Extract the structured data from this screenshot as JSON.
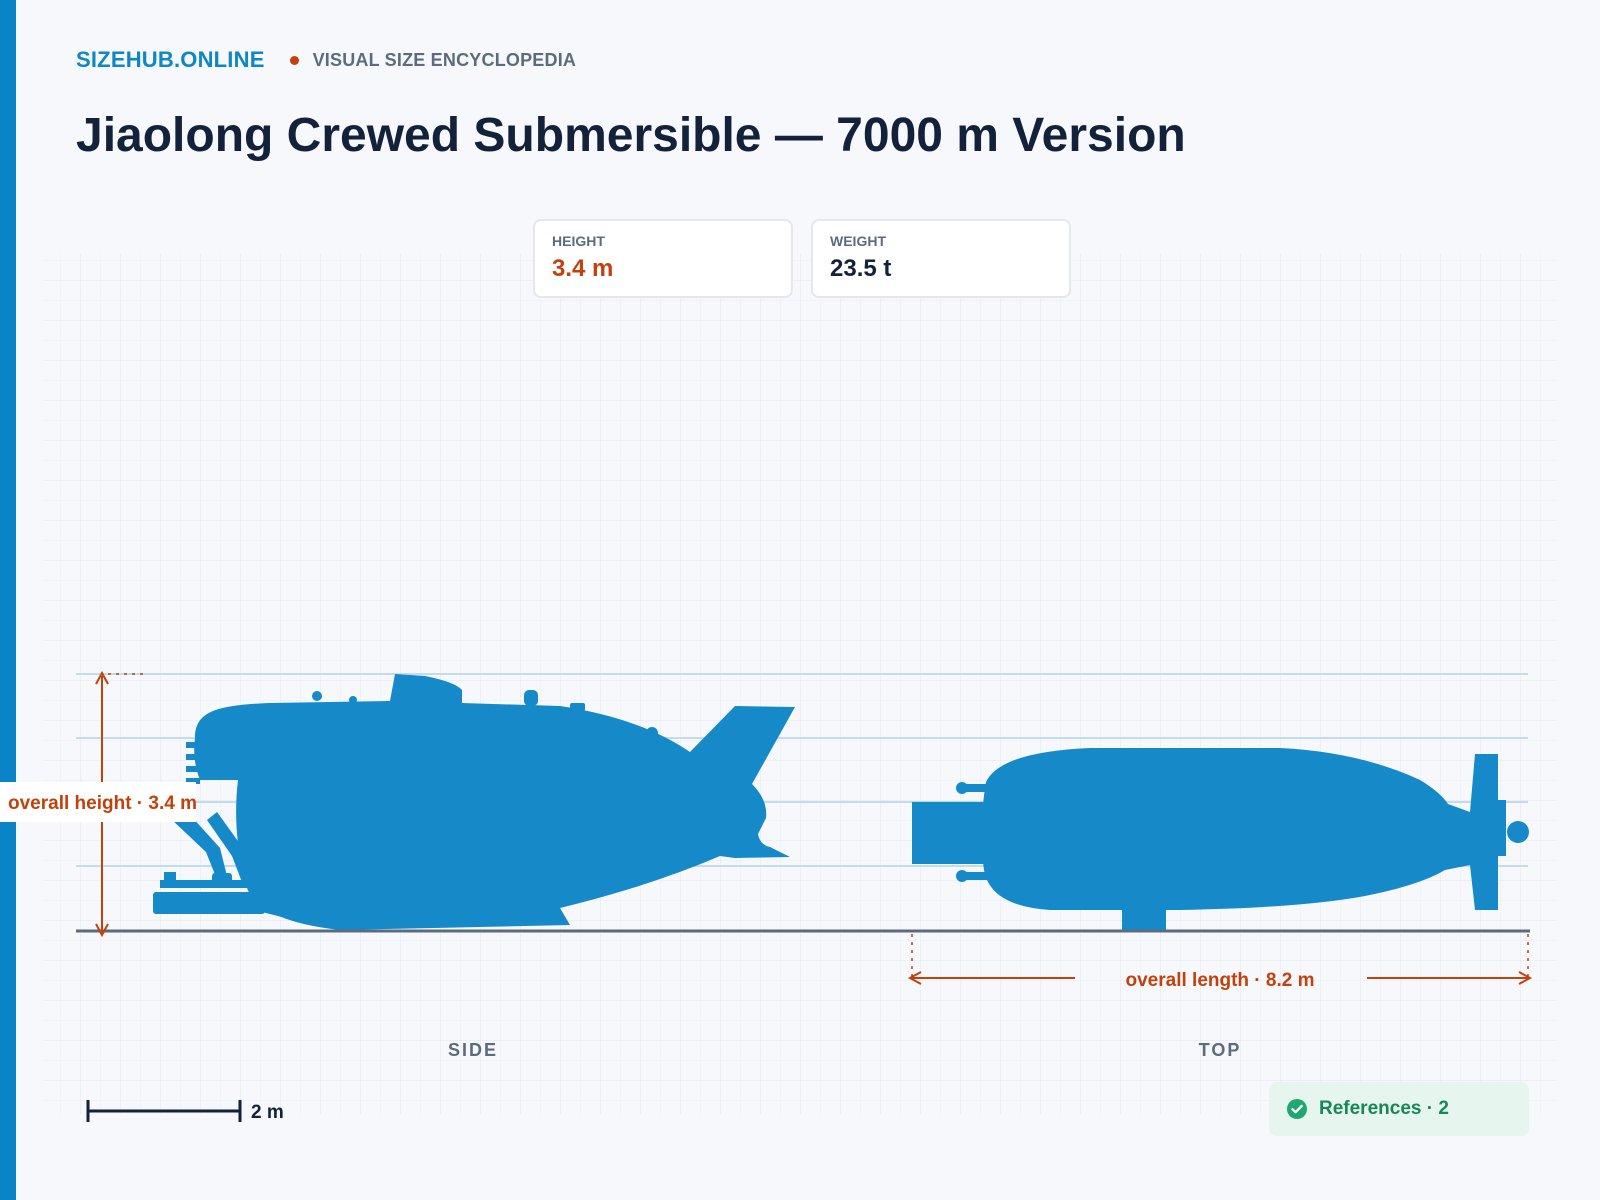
{
  "brand": {
    "site": "SIZEHUB.ONLINE",
    "tagline": "VISUAL SIZE ENCYCLOPEDIA",
    "accent_color": "#0a84c6",
    "dot_color": "#c2410c"
  },
  "title": "Jiaolong Crewed Submersible — 7000 m Version",
  "stats": [
    {
      "label": "HEIGHT",
      "value": "3.4 m",
      "color": "#c2410c"
    },
    {
      "label": "WEIGHT",
      "value": "23.5 t",
      "color": "#13213a"
    }
  ],
  "diagram": {
    "silhouette_color": "#1689c8",
    "dimension_color": "#c2410c",
    "height_label": "overall height · 3.4 m",
    "length_label": "overall length · 8.2 m",
    "height_m": 3.4,
    "length_m": 8.2,
    "views": [
      "SIDE",
      "TOP"
    ],
    "scale_label": "2 m",
    "scale_m": 2
  },
  "references": {
    "label": "References · 2",
    "icon": "check-circle-icon",
    "color": "#17875a"
  }
}
